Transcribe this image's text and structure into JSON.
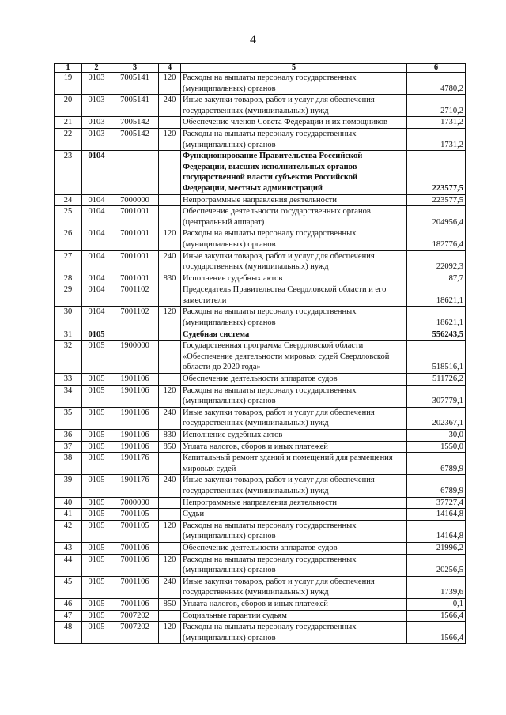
{
  "page_number": "4",
  "table": {
    "header": [
      "1",
      "2",
      "3",
      "4",
      "5",
      "6"
    ],
    "rows": [
      {
        "n": "19",
        "section": "0103",
        "target": "7005141",
        "kind": "120",
        "name": [
          "Расходы на выплаты персоналу государственных",
          "(муниципальных) органов"
        ],
        "amount": "4780,2"
      },
      {
        "n": "20",
        "section": "0103",
        "target": "7005141",
        "kind": "240",
        "name": [
          "Иные закупки товаров, работ и услуг для обеспечения",
          "государственных (муниципальных) нужд"
        ],
        "amount": "2710,2"
      },
      {
        "n": "21",
        "section": "0103",
        "target": "7005142",
        "kind": null,
        "name": [
          "Обеспечение членов Совета Федерации и их помощников"
        ],
        "amount": "1731,2"
      },
      {
        "n": "22",
        "section": "0103",
        "target": "7005142",
        "kind": "120",
        "name": [
          "Расходы на выплаты персоналу государственных",
          "(муниципальных) органов"
        ],
        "amount": "1731,2"
      },
      {
        "n": "23",
        "section": "0104",
        "target": null,
        "kind": null,
        "name": [
          "Функционирование Правительства Российской",
          "Федерации, высших исполнительных органов",
          "государственной власти субъектов Российской",
          "Федерации, местных администраций"
        ],
        "amount": "223577,5",
        "bold": true
      },
      {
        "n": "24",
        "section": "0104",
        "target": "7000000",
        "kind": null,
        "name": [
          "Непрограммные направления деятельности"
        ],
        "amount": "223577,5"
      },
      {
        "n": "25",
        "section": "0104",
        "target": "7001001",
        "kind": null,
        "name": [
          "Обеспечение деятельности государственных органов",
          "(центральный аппарат)"
        ],
        "amount": "204956,4"
      },
      {
        "n": "26",
        "section": "0104",
        "target": "7001001",
        "kind": "120",
        "name": [
          "Расходы на выплаты персоналу государственных",
          "(муниципальных) органов"
        ],
        "amount": "182776,4"
      },
      {
        "n": "27",
        "section": "0104",
        "target": "7001001",
        "kind": "240",
        "name": [
          "Иные закупки товаров, работ и услуг для обеспечения",
          "государственных (муниципальных) нужд"
        ],
        "amount": "22092,3"
      },
      {
        "n": "28",
        "section": "0104",
        "target": "7001001",
        "kind": "830",
        "name": [
          "Исполнение судебных актов"
        ],
        "amount": "87,7"
      },
      {
        "n": "29",
        "section": "0104",
        "target": "7001102",
        "kind": null,
        "name": [
          "Председатель Правительства Свердловской области и его",
          "заместители"
        ],
        "amount": "18621,1"
      },
      {
        "n": "30",
        "section": "0104",
        "target": "7001102",
        "kind": "120",
        "name": [
          "Расходы на выплаты персоналу государственных",
          "(муниципальных) органов"
        ],
        "amount": "18621,1"
      },
      {
        "n": "31",
        "section": "0105",
        "target": null,
        "kind": null,
        "name": [
          "Судебная система"
        ],
        "amount": "556243,5",
        "bold": true
      },
      {
        "n": "32",
        "section": "0105",
        "target": "1900000",
        "kind": null,
        "name": [
          "Государственная программа Свердловской области",
          "«Обеспечение деятельности мировых судей Свердловской",
          "области до 2020 года»"
        ],
        "amount": "518516,1"
      },
      {
        "n": "33",
        "section": "0105",
        "target": "1901106",
        "kind": null,
        "name": [
          "Обеспечение деятельности аппаратов судов"
        ],
        "amount": "511726,2"
      },
      {
        "n": "34",
        "section": "0105",
        "target": "1901106",
        "kind": "120",
        "name": [
          "Расходы на выплаты персоналу государственных",
          "(муниципальных) органов"
        ],
        "amount": "307779,1"
      },
      {
        "n": "35",
        "section": "0105",
        "target": "1901106",
        "kind": "240",
        "name": [
          "Иные закупки товаров, работ и услуг для обеспечения",
          "государственных (муниципальных) нужд"
        ],
        "amount": "202367,1"
      },
      {
        "n": "36",
        "section": "0105",
        "target": "1901106",
        "kind": "830",
        "name": [
          "Исполнение судебных актов"
        ],
        "amount": "30,0"
      },
      {
        "n": "37",
        "section": "0105",
        "target": "1901106",
        "kind": "850",
        "name": [
          "Уплата налогов, сборов и иных платежей"
        ],
        "amount": "1550,0"
      },
      {
        "n": "38",
        "section": "0105",
        "target": "1901176",
        "kind": null,
        "name": [
          "Капитальный ремонт зданий и помещений для размещения",
          "мировых судей"
        ],
        "amount": "6789,9"
      },
      {
        "n": "39",
        "section": "0105",
        "target": "1901176",
        "kind": "240",
        "name": [
          "Иные закупки товаров, работ и услуг для обеспечения",
          "государственных (муниципальных) нужд"
        ],
        "amount": "6789,9"
      },
      {
        "n": "40",
        "section": "0105",
        "target": "7000000",
        "kind": null,
        "name": [
          "Непрограммные направления деятельности"
        ],
        "amount": "37727,4"
      },
      {
        "n": "41",
        "section": "0105",
        "target": "7001105",
        "kind": null,
        "name": [
          "Судьи"
        ],
        "amount": "14164,8"
      },
      {
        "n": "42",
        "section": "0105",
        "target": "7001105",
        "kind": "120",
        "name": [
          "Расходы на выплаты персоналу государственных",
          "(муниципальных) органов"
        ],
        "amount": "14164,8"
      },
      {
        "n": "43",
        "section": "0105",
        "target": "7001106",
        "kind": null,
        "name": [
          "Обеспечение деятельности аппаратов судов"
        ],
        "amount": "21996,2"
      },
      {
        "n": "44",
        "section": "0105",
        "target": "7001106",
        "kind": "120",
        "name": [
          "Расходы на выплаты персоналу государственных",
          "(муниципальных) органов"
        ],
        "amount": "20256,5"
      },
      {
        "n": "45",
        "section": "0105",
        "target": "7001106",
        "kind": "240",
        "name": [
          "Иные закупки товаров, работ и услуг для обеспечения",
          "государственных (муниципальных) нужд"
        ],
        "amount": "1739,6"
      },
      {
        "n": "46",
        "section": "0105",
        "target": "7001106",
        "kind": "850",
        "name": [
          "Уплата налогов, сборов и иных платежей"
        ],
        "amount": "0,1"
      },
      {
        "n": "47",
        "section": "0105",
        "target": "7007202",
        "kind": null,
        "name": [
          "Социальные гарантии судьям"
        ],
        "amount": "1566,4"
      },
      {
        "n": "48",
        "section": "0105",
        "target": "7007202",
        "kind": "120",
        "name": [
          "Расходы на выплаты персоналу государственных",
          "(муниципальных) органов"
        ],
        "amount": "1566,4"
      }
    ]
  }
}
